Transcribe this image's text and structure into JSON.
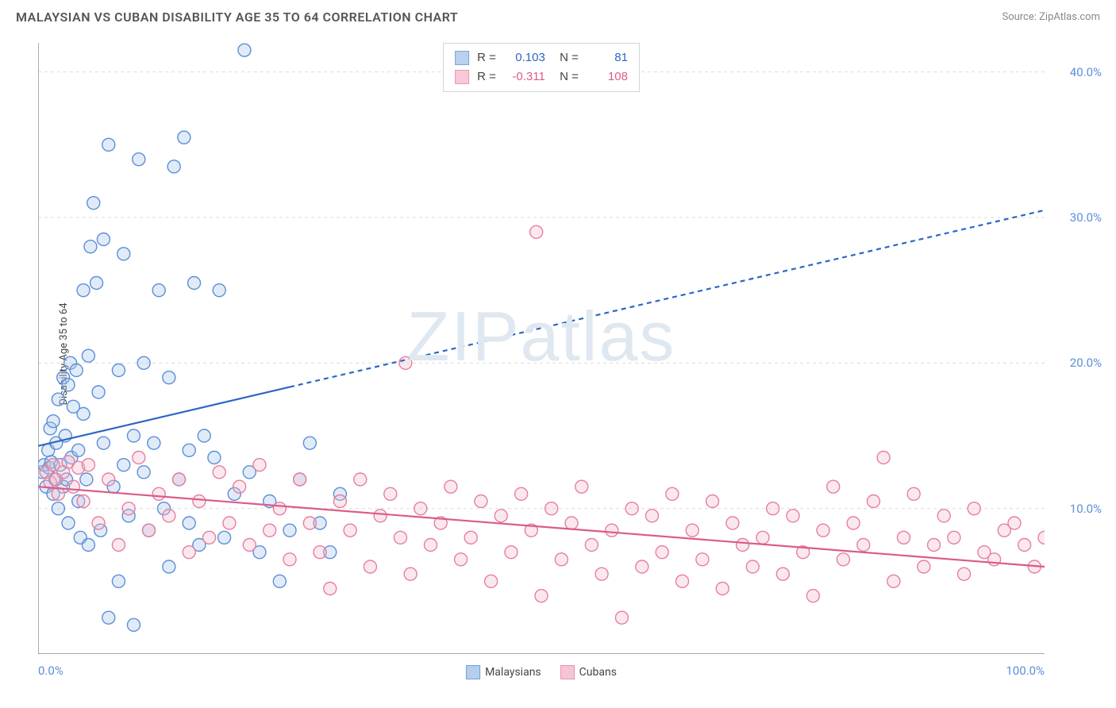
{
  "title": "MALAYSIAN VS CUBAN DISABILITY AGE 35 TO 64 CORRELATION CHART",
  "source": "Source: ZipAtlas.com",
  "ylabel": "Disability Age 35 to 64",
  "watermark": "ZIPatlas",
  "chart": {
    "type": "scatter",
    "background_color": "#ffffff",
    "grid_color": "#dcdcdc",
    "axis_color": "#777777",
    "tick_label_color": "#5b8fd8",
    "xlim": [
      0,
      100
    ],
    "ylim": [
      0,
      42
    ],
    "x_tick_positions": [
      0,
      20,
      40,
      60,
      80,
      100
    ],
    "x_tick_labels": {
      "0": "0.0%",
      "100": "100.0%"
    },
    "y_grid_positions": [
      10,
      20,
      30,
      40
    ],
    "y_tick_labels": {
      "10": "10.0%",
      "20": "20.0%",
      "30": "30.0%",
      "40": "40.0%"
    },
    "marker_radius": 8,
    "marker_stroke_width": 1.4,
    "marker_fill_opacity": 0.35,
    "line_width": 2.2,
    "dash_pattern": "6 5"
  },
  "series": [
    {
      "key": "malaysians",
      "label": "Malaysians",
      "color_stroke": "#5b8fd8",
      "color_fill": "#a8c6ea",
      "line_color": "#2e66c4",
      "R": "0.103",
      "N": "81",
      "trend": {
        "x0": 0,
        "y0": 14.3,
        "x1": 100,
        "y1": 30.5,
        "solid_until_x": 25
      },
      "points": [
        [
          0.4,
          12.5
        ],
        [
          0.6,
          13.0
        ],
        [
          0.8,
          11.5
        ],
        [
          1.0,
          14.0
        ],
        [
          1.1,
          12.8
        ],
        [
          1.2,
          15.5
        ],
        [
          1.3,
          13.2
        ],
        [
          1.5,
          11.0
        ],
        [
          1.5,
          16.0
        ],
        [
          1.7,
          12.0
        ],
        [
          1.8,
          14.5
        ],
        [
          2.0,
          10.0
        ],
        [
          2.0,
          17.5
        ],
        [
          2.2,
          13.0
        ],
        [
          2.5,
          11.5
        ],
        [
          2.5,
          19.0
        ],
        [
          2.7,
          15.0
        ],
        [
          2.8,
          12.0
        ],
        [
          3.0,
          9.0
        ],
        [
          3.0,
          18.5
        ],
        [
          3.2,
          20.0
        ],
        [
          3.3,
          13.5
        ],
        [
          3.5,
          17.0
        ],
        [
          3.8,
          19.5
        ],
        [
          4.0,
          10.5
        ],
        [
          4.0,
          14.0
        ],
        [
          4.2,
          8.0
        ],
        [
          4.5,
          16.5
        ],
        [
          4.5,
          25.0
        ],
        [
          4.8,
          12.0
        ],
        [
          5.0,
          20.5
        ],
        [
          5.0,
          7.5
        ],
        [
          5.2,
          28.0
        ],
        [
          5.5,
          31.0
        ],
        [
          5.8,
          25.5
        ],
        [
          6.0,
          18.0
        ],
        [
          6.2,
          8.5
        ],
        [
          6.5,
          14.5
        ],
        [
          6.5,
          28.5
        ],
        [
          7.0,
          2.5
        ],
        [
          7.0,
          35.0
        ],
        [
          7.5,
          11.5
        ],
        [
          8.0,
          19.5
        ],
        [
          8.0,
          5.0
        ],
        [
          8.5,
          13.0
        ],
        [
          8.5,
          27.5
        ],
        [
          9.0,
          9.5
        ],
        [
          9.5,
          15.0
        ],
        [
          9.5,
          2.0
        ],
        [
          10.0,
          34.0
        ],
        [
          10.5,
          12.5
        ],
        [
          10.5,
          20.0
        ],
        [
          11.0,
          8.5
        ],
        [
          11.5,
          14.5
        ],
        [
          12.0,
          25.0
        ],
        [
          12.5,
          10.0
        ],
        [
          13.0,
          6.0
        ],
        [
          13.0,
          19.0
        ],
        [
          13.5,
          33.5
        ],
        [
          14.0,
          12.0
        ],
        [
          14.5,
          35.5
        ],
        [
          15.0,
          14.0
        ],
        [
          15.0,
          9.0
        ],
        [
          15.5,
          25.5
        ],
        [
          16.0,
          7.5
        ],
        [
          16.5,
          15.0
        ],
        [
          17.5,
          13.5
        ],
        [
          18.0,
          25.0
        ],
        [
          18.5,
          8.0
        ],
        [
          19.5,
          11.0
        ],
        [
          20.5,
          41.5
        ],
        [
          21.0,
          12.5
        ],
        [
          22.0,
          7.0
        ],
        [
          23.0,
          10.5
        ],
        [
          24.0,
          5.0
        ],
        [
          25.0,
          8.5
        ],
        [
          26.0,
          12.0
        ],
        [
          27.0,
          14.5
        ],
        [
          28.0,
          9.0
        ],
        [
          29.0,
          7.0
        ],
        [
          30.0,
          11.0
        ]
      ]
    },
    {
      "key": "cubans",
      "label": "Cubans",
      "color_stroke": "#e67fa0",
      "color_fill": "#f4bccf",
      "line_color": "#db5b88",
      "R": "-0.311",
      "N": "108",
      "trend": {
        "x0": 0,
        "y0": 11.5,
        "x1": 100,
        "y1": 6.0,
        "solid_until_x": 100
      },
      "points": [
        [
          0.8,
          12.5
        ],
        [
          1.2,
          11.8
        ],
        [
          1.5,
          13.0
        ],
        [
          1.8,
          12.0
        ],
        [
          2.0,
          11.0
        ],
        [
          2.5,
          12.5
        ],
        [
          3.0,
          13.2
        ],
        [
          3.5,
          11.5
        ],
        [
          4.0,
          12.8
        ],
        [
          4.5,
          10.5
        ],
        [
          5.0,
          13.0
        ],
        [
          6.0,
          9.0
        ],
        [
          7.0,
          12.0
        ],
        [
          8.0,
          7.5
        ],
        [
          9.0,
          10.0
        ],
        [
          10.0,
          13.5
        ],
        [
          11.0,
          8.5
        ],
        [
          12.0,
          11.0
        ],
        [
          13.0,
          9.5
        ],
        [
          14.0,
          12.0
        ],
        [
          15.0,
          7.0
        ],
        [
          16.0,
          10.5
        ],
        [
          17.0,
          8.0
        ],
        [
          18.0,
          12.5
        ],
        [
          19.0,
          9.0
        ],
        [
          20.0,
          11.5
        ],
        [
          21.0,
          7.5
        ],
        [
          22.0,
          13.0
        ],
        [
          23.0,
          8.5
        ],
        [
          24.0,
          10.0
        ],
        [
          25.0,
          6.5
        ],
        [
          26.0,
          12.0
        ],
        [
          27.0,
          9.0
        ],
        [
          28.0,
          7.0
        ],
        [
          29.0,
          4.5
        ],
        [
          30.0,
          10.5
        ],
        [
          31.0,
          8.5
        ],
        [
          32.0,
          12.0
        ],
        [
          33.0,
          6.0
        ],
        [
          34.0,
          9.5
        ],
        [
          35.0,
          11.0
        ],
        [
          36.0,
          8.0
        ],
        [
          36.5,
          20.0
        ],
        [
          37.0,
          5.5
        ],
        [
          38.0,
          10.0
        ],
        [
          39.0,
          7.5
        ],
        [
          40.0,
          9.0
        ],
        [
          41.0,
          11.5
        ],
        [
          42.0,
          6.5
        ],
        [
          43.0,
          8.0
        ],
        [
          44.0,
          10.5
        ],
        [
          45.0,
          5.0
        ],
        [
          46.0,
          9.5
        ],
        [
          47.0,
          7.0
        ],
        [
          48.0,
          11.0
        ],
        [
          49.0,
          8.5
        ],
        [
          49.5,
          29.0
        ],
        [
          50.0,
          4.0
        ],
        [
          51.0,
          10.0
        ],
        [
          52.0,
          6.5
        ],
        [
          53.0,
          9.0
        ],
        [
          54.0,
          11.5
        ],
        [
          55.0,
          7.5
        ],
        [
          56.0,
          5.5
        ],
        [
          57.0,
          8.5
        ],
        [
          58.0,
          2.5
        ],
        [
          59.0,
          10.0
        ],
        [
          60.0,
          6.0
        ],
        [
          61.0,
          9.5
        ],
        [
          62.0,
          7.0
        ],
        [
          63.0,
          11.0
        ],
        [
          64.0,
          5.0
        ],
        [
          65.0,
          8.5
        ],
        [
          66.0,
          6.5
        ],
        [
          67.0,
          10.5
        ],
        [
          68.0,
          4.5
        ],
        [
          69.0,
          9.0
        ],
        [
          70.0,
          7.5
        ],
        [
          71.0,
          6.0
        ],
        [
          72.0,
          8.0
        ],
        [
          73.0,
          10.0
        ],
        [
          74.0,
          5.5
        ],
        [
          75.0,
          9.5
        ],
        [
          76.0,
          7.0
        ],
        [
          77.0,
          4.0
        ],
        [
          78.0,
          8.5
        ],
        [
          79.0,
          11.5
        ],
        [
          80.0,
          6.5
        ],
        [
          81.0,
          9.0
        ],
        [
          82.0,
          7.5
        ],
        [
          83.0,
          10.5
        ],
        [
          84.0,
          13.5
        ],
        [
          85.0,
          5.0
        ],
        [
          86.0,
          8.0
        ],
        [
          87.0,
          11.0
        ],
        [
          88.0,
          6.0
        ],
        [
          89.0,
          7.5
        ],
        [
          90.0,
          9.5
        ],
        [
          91.0,
          8.0
        ],
        [
          92.0,
          5.5
        ],
        [
          93.0,
          10.0
        ],
        [
          94.0,
          7.0
        ],
        [
          95.0,
          6.5
        ],
        [
          96.0,
          8.5
        ],
        [
          97.0,
          9.0
        ],
        [
          98.0,
          7.5
        ],
        [
          99.0,
          6.0
        ],
        [
          100.0,
          8.0
        ]
      ]
    }
  ]
}
